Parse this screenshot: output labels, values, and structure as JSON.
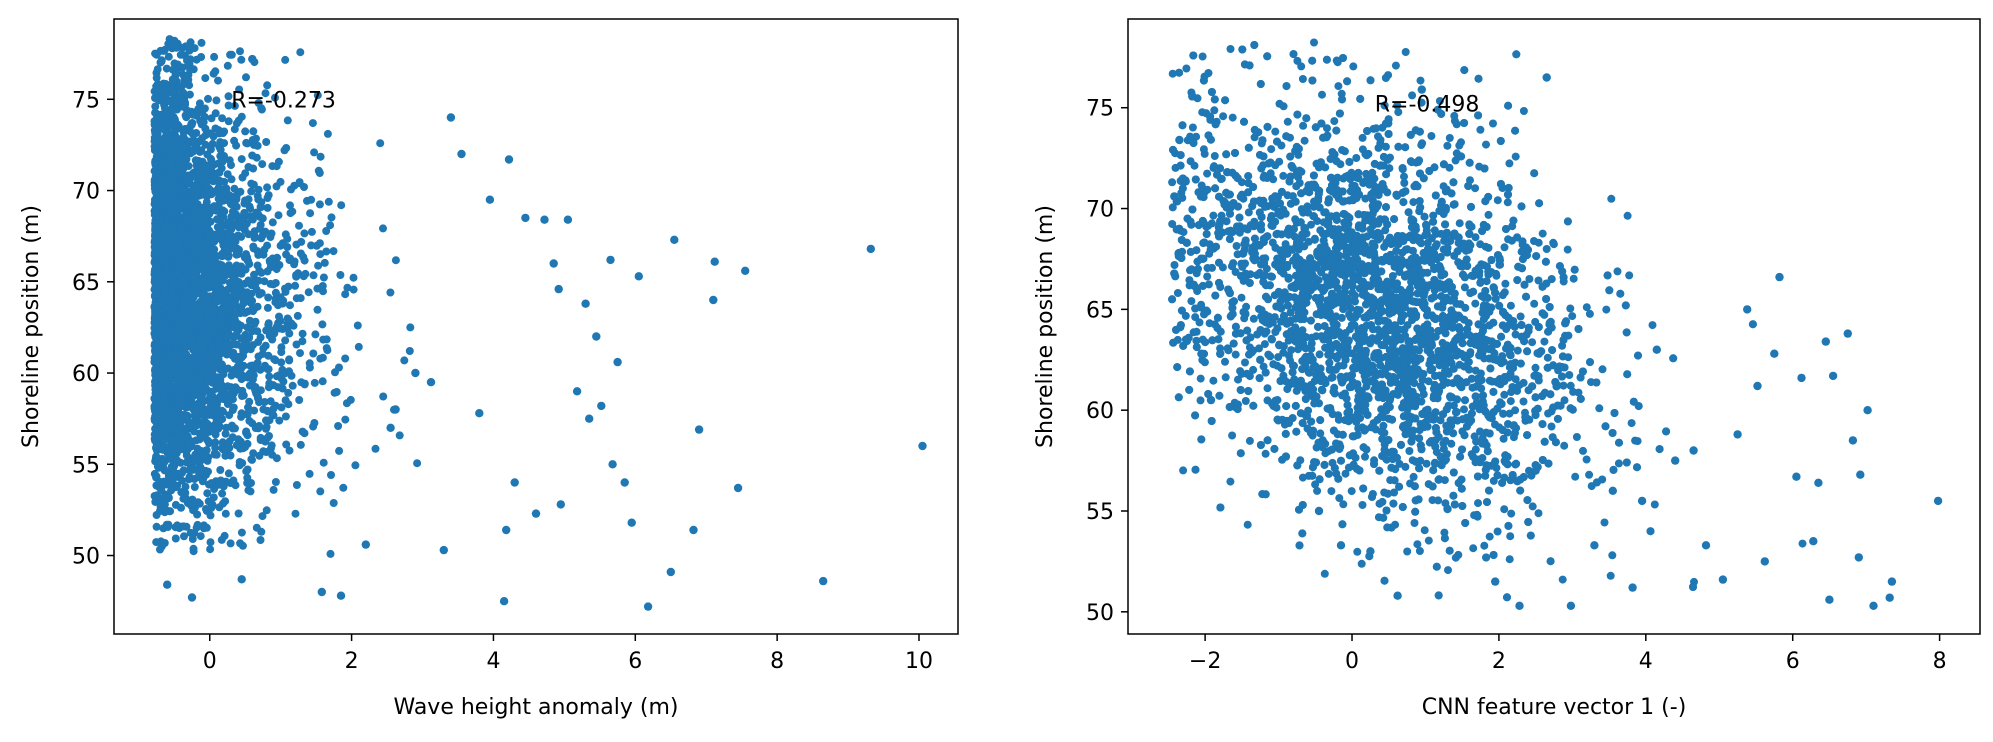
{
  "chart_data": [
    {
      "type": "scatter",
      "xlabel": "Wave height anomaly (m)",
      "ylabel": "Shoreline position (m)",
      "xlim": [
        -1.35,
        10.55
      ],
      "ylim": [
        45.7,
        79.4
      ],
      "xticks": [
        0,
        2,
        4,
        6,
        8,
        10
      ],
      "yticks": [
        50,
        55,
        60,
        65,
        70,
        75
      ],
      "xtick_labels": [
        "0",
        "2",
        "4",
        "6",
        "8",
        "10"
      ],
      "ytick_labels": [
        "50",
        "55",
        "60",
        "65",
        "70",
        "75"
      ],
      "annotation": {
        "text": "R=-0.273",
        "x": 0.5,
        "y": 75.0
      },
      "marker_color": "#1f77b4",
      "series": [
        {
          "x": [
            10.05,
            9.32,
            8.65,
            7.55,
            7.45,
            7.12,
            7.1,
            6.9,
            6.82,
            6.55,
            6.5,
            6.18,
            6.05,
            5.95,
            5.85,
            5.75,
            5.68,
            5.65,
            5.52,
            5.45,
            5.35,
            5.3,
            5.18,
            5.05,
            4.95,
            4.92,
            4.85,
            4.72,
            4.6,
            4.45,
            4.3,
            4.22,
            4.18,
            4.15,
            3.95,
            3.8,
            3.55,
            3.4,
            3.3,
            3.12,
            2.9,
            2.62,
            2.55,
            1.85,
            1.58,
            0.72,
            0.45,
            -0.25,
            -0.6,
            -0.5,
            0.6,
            2.2
          ],
          "y": [
            56.0,
            66.8,
            48.6,
            65.6,
            53.7,
            66.1,
            64.0,
            56.9,
            51.4,
            67.3,
            49.1,
            47.2,
            65.3,
            51.8,
            54.0,
            60.6,
            55.0,
            66.2,
            58.2,
            62.0,
            57.5,
            63.8,
            59.0,
            68.4,
            52.8,
            64.6,
            66.0,
            68.4,
            52.3,
            68.5,
            54.0,
            71.7,
            51.4,
            47.5,
            69.5,
            57.8,
            72.0,
            74.0,
            50.3,
            59.5,
            60.0,
            58.0,
            57.0,
            47.8,
            48.0,
            69.1,
            48.7,
            47.7,
            48.4,
            78.2,
            77.2,
            50.6
          ]
        }
      ]
    },
    {
      "type": "scatter",
      "xlabel": "CNN feature vector 1 (-)",
      "ylabel": "Shoreline position (m)",
      "xlim": [
        -3.05,
        8.55
      ],
      "ylim": [
        48.9,
        79.4
      ],
      "xticks": [
        -2,
        0,
        2,
        4,
        6,
        8
      ],
      "yticks": [
        50,
        55,
        60,
        65,
        70,
        75
      ],
      "xtick_labels": [
        "−2",
        "0",
        "2",
        "4",
        "6",
        "8"
      ],
      "ytick_labels": [
        "50",
        "55",
        "60",
        "65",
        "70",
        "75"
      ],
      "annotation": {
        "text": "R=-0.498",
        "x": 0.5,
        "y": 75.2
      },
      "marker_color": "#1f77b4",
      "series": [
        {
          "x": [
            7.98,
            7.35,
            7.32,
            7.1,
            7.02,
            6.92,
            6.9,
            6.82,
            6.75,
            6.55,
            6.5,
            6.45,
            6.35,
            6.28,
            6.12,
            6.05,
            5.82,
            5.75,
            5.62,
            5.52,
            5.38,
            5.25,
            5.05,
            4.82,
            4.65,
            4.4,
            4.15,
            3.95,
            3.82,
            3.55,
            3.3,
            2.98,
            2.65,
            2.5,
            2.28,
            1.95,
            1.62,
            1.3,
            0.95,
            0.62,
            0.25,
            -0.15,
            -0.45,
            -0.9,
            -1.25,
            -1.7,
            -1.92,
            -2.05,
            -2.25,
            -2.35,
            -2.42
          ],
          "y": [
            55.5,
            51.5,
            50.7,
            50.3,
            60.0,
            56.8,
            52.7,
            58.5,
            63.8,
            61.7,
            50.6,
            63.4,
            56.4,
            53.5,
            61.6,
            56.7,
            66.6,
            62.8,
            52.5,
            61.2,
            65.0,
            58.8,
            51.6,
            53.3,
            58.0,
            57.5,
            63.0,
            55.5,
            51.2,
            56.0,
            53.3,
            50.3,
            76.5,
            57.0,
            50.3,
            51.5,
            59.5,
            55.1,
            75.9,
            50.8,
            53.0,
            53.3,
            55.0,
            57.7,
            62.5,
            71.8,
            60.5,
            62.8,
            68.3,
            73.4,
            70.6
          ]
        }
      ]
    }
  ]
}
